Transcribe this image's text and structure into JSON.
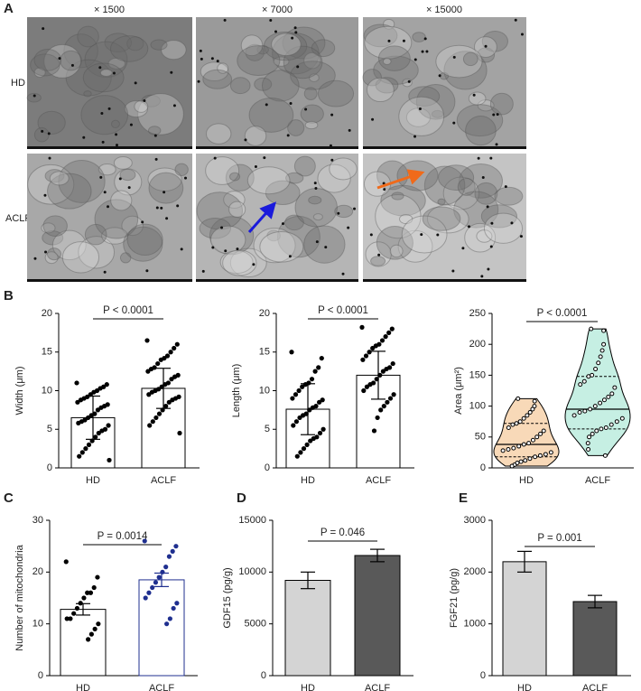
{
  "panel_labels": [
    "A",
    "B",
    "C",
    "D",
    "E"
  ],
  "images": {
    "magnifications": [
      "× 1500",
      "× 7000",
      "× 15000"
    ],
    "groups": [
      "HD",
      "ACLF"
    ]
  },
  "chart_data": [
    {
      "type": "bar",
      "ylabel": "Width (μm)",
      "categories": [
        "HD",
        "ACLF"
      ],
      "values": [
        6.5,
        10.3
      ],
      "errors": [
        2.8,
        2.6
      ],
      "colors": [
        "#ffffff",
        "#ffffff"
      ],
      "edge_colors": [
        "#000000",
        "#000000"
      ],
      "point_colors": [
        "#000000",
        "#000000"
      ],
      "points": [
        [
          11,
          10.8,
          10.5,
          10.3,
          10,
          9.8,
          9.5,
          9.2,
          9,
          8.8,
          8.5,
          8.2,
          8,
          7.8,
          7.5,
          7,
          6.8,
          6.5,
          6.2,
          6,
          5.8,
          5.5,
          5,
          4.8,
          4.5,
          4,
          3.5,
          3,
          2.5,
          2,
          1.5,
          1
        ],
        [
          16.5,
          16,
          15.5,
          15,
          14.5,
          14.2,
          14,
          13.5,
          13,
          12.8,
          12.5,
          12,
          11.8,
          11.5,
          11,
          10.8,
          10.5,
          10.2,
          10,
          9.8,
          9.5,
          9.2,
          9,
          8.8,
          8.5,
          8,
          7.5,
          7,
          6.5,
          6,
          5.5,
          4.5
        ]
      ],
      "annotation": "P < 0.0001",
      "ylim": [
        0,
        20
      ],
      "yticks": [
        0,
        5,
        10,
        15,
        20
      ]
    },
    {
      "type": "bar",
      "ylabel": "Length (μm)",
      "categories": [
        "HD",
        "ACLF"
      ],
      "values": [
        7.6,
        12.0
      ],
      "errors": [
        3.3,
        3.1
      ],
      "colors": [
        "#ffffff",
        "#ffffff"
      ],
      "edge_colors": [
        "#000000",
        "#000000"
      ],
      "point_colors": [
        "#000000",
        "#000000"
      ],
      "points": [
        [
          15,
          14.2,
          13,
          12.5,
          11.5,
          11,
          10.8,
          10.5,
          10,
          9.5,
          9,
          8.8,
          8.5,
          8,
          7.8,
          7.5,
          7,
          6.8,
          6.5,
          6,
          5.5,
          5,
          4.5,
          4,
          3.8,
          3.5,
          3,
          2.5,
          2,
          1.5
        ],
        [
          18.2,
          18,
          17.5,
          17,
          16.5,
          16,
          15.8,
          15.5,
          15,
          14.5,
          14,
          13.5,
          13,
          12.8,
          12.5,
          12,
          11.5,
          11,
          10.8,
          10.5,
          10,
          9.5,
          9,
          8.5,
          8,
          7.5,
          6.5,
          4.8
        ]
      ],
      "annotation": "P < 0.0001",
      "ylim": [
        0,
        20
      ],
      "yticks": [
        0,
        5,
        10,
        15,
        20
      ]
    },
    {
      "type": "violin",
      "ylabel": "Area (μm²)",
      "categories": [
        "HD",
        "ACLF"
      ],
      "medians": [
        38,
        95
      ],
      "q1": [
        18,
        63
      ],
      "q3": [
        72,
        148
      ],
      "colors": [
        "#f8d9b8",
        "#c6efe3"
      ],
      "points": [
        [
          112,
          108,
          100,
          95,
          90,
          85,
          80,
          75,
          72,
          70,
          65,
          60,
          55,
          50,
          45,
          40,
          38,
          35,
          32,
          30,
          28,
          25,
          22,
          20,
          18,
          15,
          12,
          10,
          8,
          5,
          3
        ],
        [
          225,
          222,
          200,
          190,
          180,
          170,
          160,
          150,
          148,
          140,
          135,
          130,
          120,
          115,
          110,
          105,
          100,
          95,
          92,
          90,
          85,
          80,
          75,
          70,
          65,
          63,
          60,
          55,
          50,
          40,
          30,
          20
        ]
      ],
      "annotation": "P < 0.0001",
      "ylim": [
        0,
        250
      ],
      "yticks": [
        0,
        50,
        100,
        150,
        200,
        250
      ]
    },
    {
      "type": "bar",
      "ylabel": "Number of mitochondria",
      "categories": [
        "HD",
        "ACLF"
      ],
      "values": [
        12.8,
        18.5
      ],
      "errors": [
        1.1,
        1.3
      ],
      "colors": [
        "#ffffff",
        "#ffffff"
      ],
      "edge_colors": [
        "#000000",
        "#1f2f8f"
      ],
      "point_colors": [
        "#000000",
        "#1f2f8f"
      ],
      "points": [
        [
          22,
          19,
          17,
          16,
          16,
          15,
          14,
          13,
          12,
          11,
          11,
          10,
          9,
          8,
          7
        ],
        [
          26,
          25,
          24,
          23,
          21,
          20,
          19,
          18,
          17,
          16,
          15,
          14,
          13,
          11,
          10
        ]
      ],
      "annotation": "P = 0.0014",
      "ylim": [
        0,
        30
      ],
      "yticks": [
        0,
        10,
        20,
        30
      ]
    },
    {
      "type": "bar",
      "ylabel": "GDF15 (pg/g)",
      "categories": [
        "HD",
        "ACLF"
      ],
      "values": [
        9200,
        11600
      ],
      "errors": [
        800,
        600
      ],
      "colors": [
        "#d4d4d4",
        "#595959"
      ],
      "edge_colors": [
        "#000000",
        "#000000"
      ],
      "annotation": "P = 0.046",
      "ylim": [
        0,
        15000
      ],
      "yticks": [
        0,
        5000,
        10000,
        15000
      ]
    },
    {
      "type": "bar",
      "ylabel": "FGF21 (pg/g)",
      "categories": [
        "HD",
        "ACLF"
      ],
      "values": [
        2200,
        1430
      ],
      "errors": [
        200,
        120
      ],
      "colors": [
        "#d4d4d4",
        "#595959"
      ],
      "edge_colors": [
        "#000000",
        "#000000"
      ],
      "annotation": "P = 0.001",
      "ylim": [
        0,
        3000
      ],
      "yticks": [
        0,
        1000,
        2000,
        3000
      ]
    }
  ]
}
